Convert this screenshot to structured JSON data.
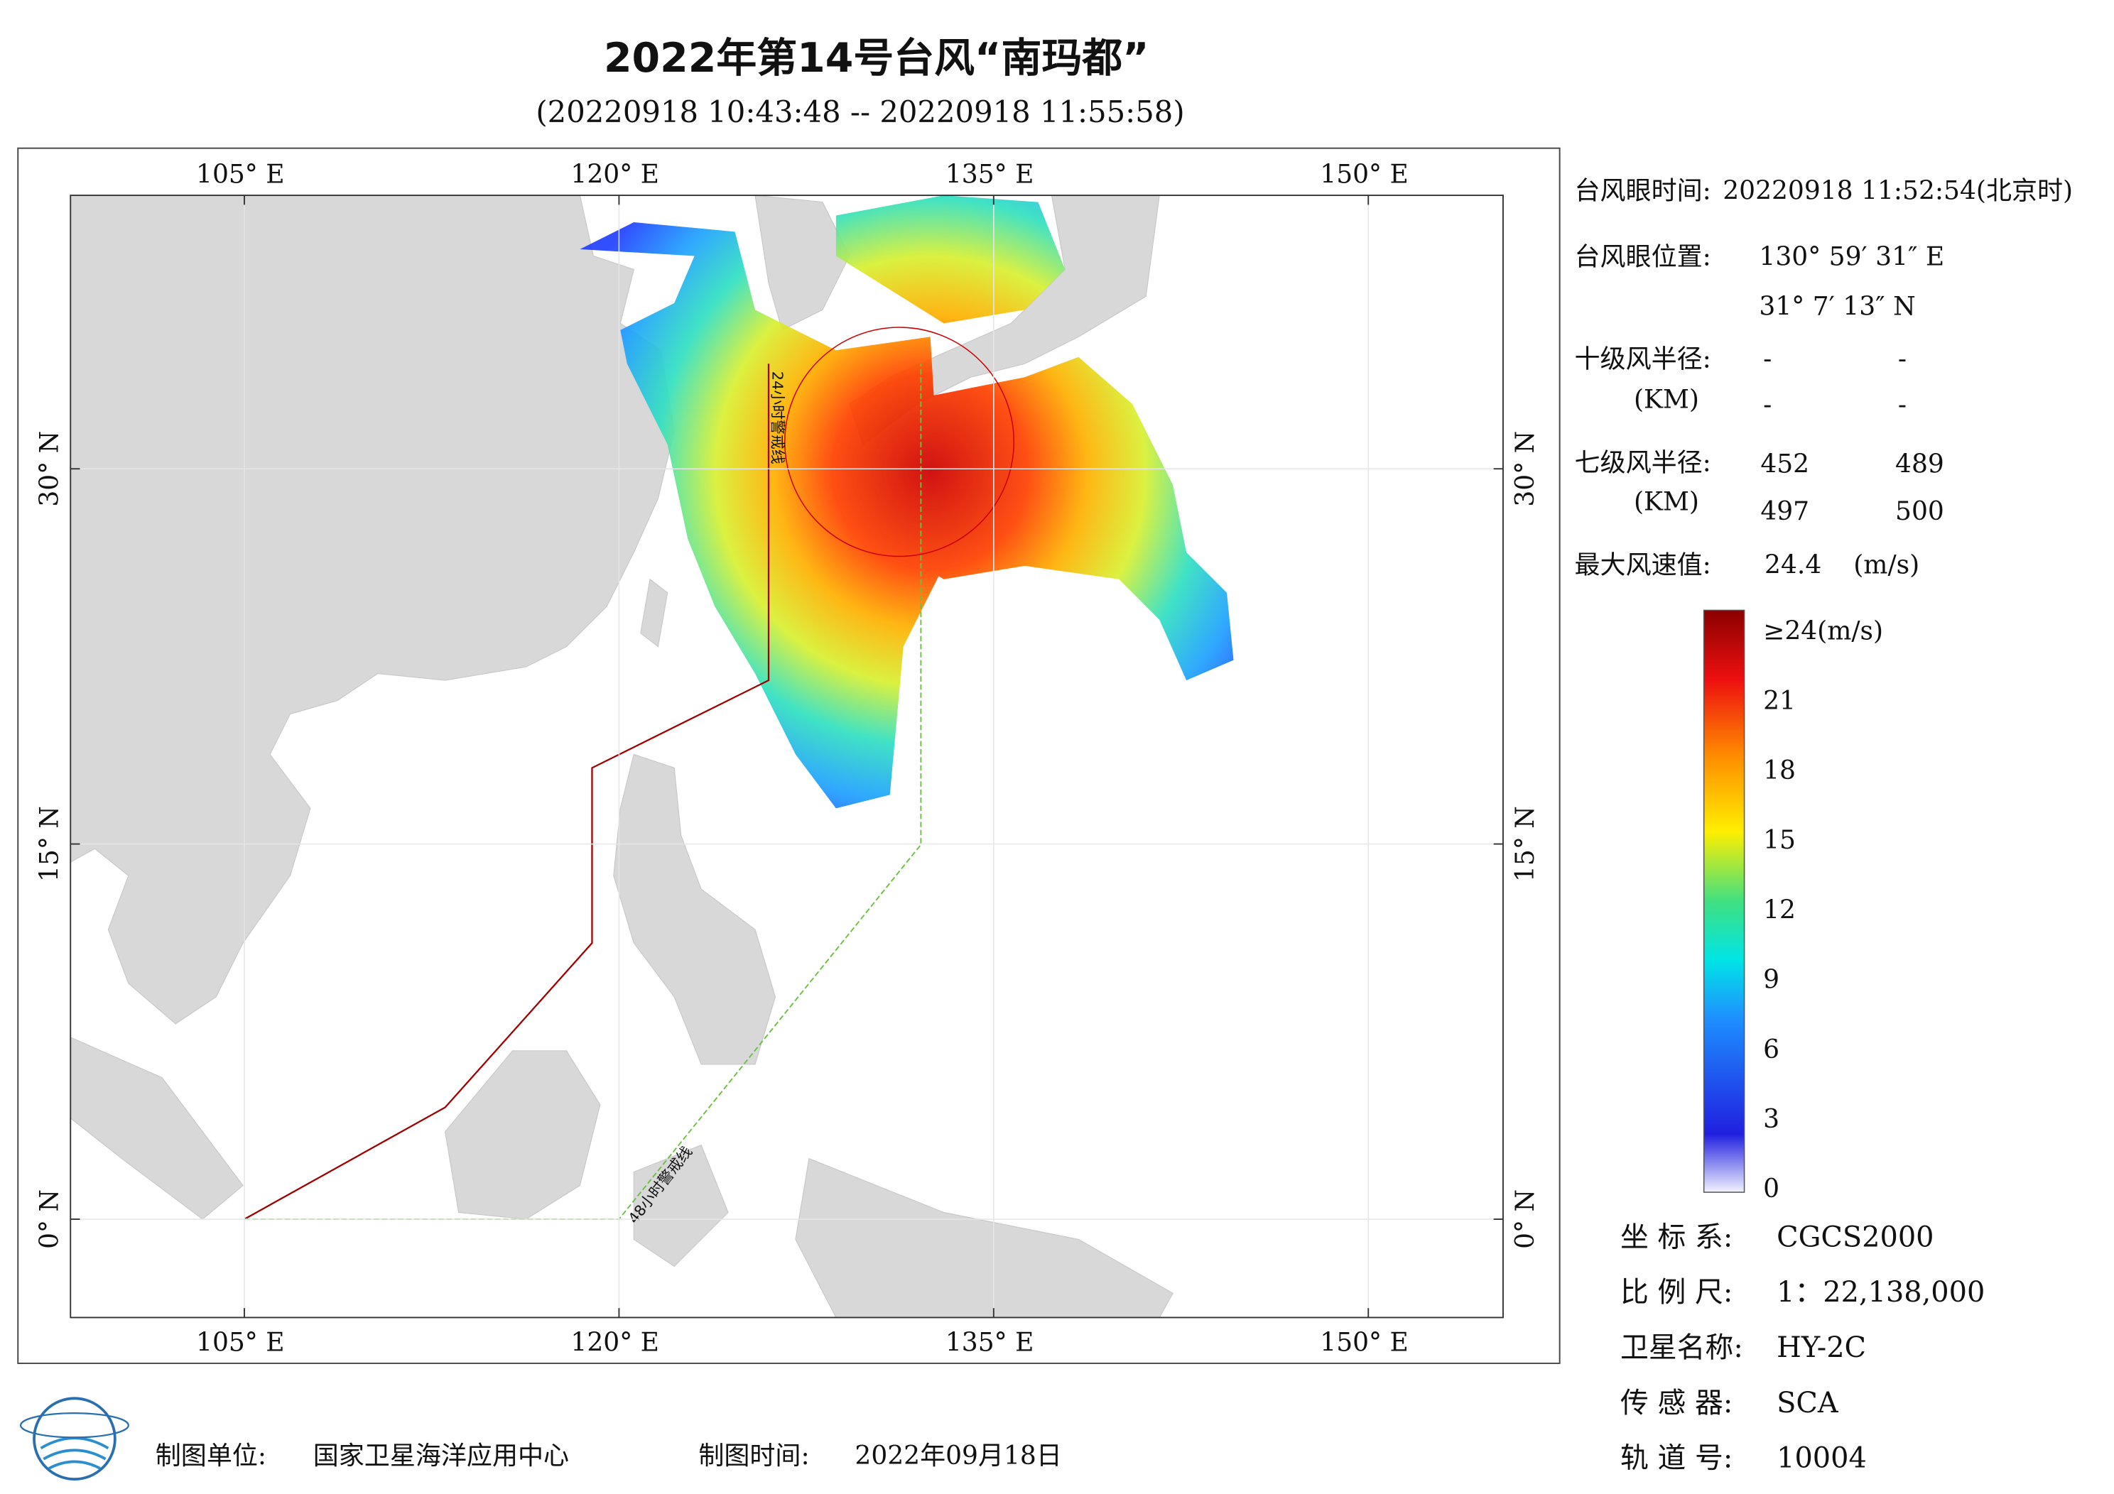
{
  "header": {
    "title": "2022年第14号台风“南玛都”",
    "subtitle": "(20220918 10:43:48 -- 20220918 11:55:58)"
  },
  "map": {
    "lon_ticks": [
      {
        "value": 105,
        "label": "105° E"
      },
      {
        "value": 120,
        "label": "120° E"
      },
      {
        "value": 135,
        "label": "135° E"
      },
      {
        "value": 150,
        "label": "150° E"
      }
    ],
    "lat_ticks": [
      {
        "value": 0,
        "label": "0° N"
      },
      {
        "value": 15,
        "label": "15° N"
      },
      {
        "value": 30,
        "label": "30° N"
      }
    ],
    "warning_lines": [
      "24小时警戒线",
      "48小时警戒线"
    ]
  },
  "info": {
    "eye_time_label": "台风眼时间:",
    "eye_time": "20220918 11:52:54(北京时)",
    "eye_pos_label": "台风眼位置:",
    "eye_lon": "130° 59′ 31″ E",
    "eye_lat": "31° 7′ 13″ N",
    "r10_label": "十级风半径:",
    "unit": "(KM)",
    "r10": [
      "-",
      "-",
      "-",
      "-"
    ],
    "r7_label": "七级风半径:",
    "r7": [
      452,
      489,
      497,
      500
    ],
    "max_wind_label": "最大风速值:",
    "max_wind": 24.4,
    "max_wind_unit": "(m/s)"
  },
  "colorbar": {
    "ticks": [
      0,
      3,
      6,
      9,
      12,
      15,
      18,
      21,
      {
        "value": 24,
        "label": "≥24(m/s)"
      }
    ]
  },
  "meta": [
    {
      "label": "坐 标 系:",
      "value": "CGCS2000"
    },
    {
      "label": "比 例 尺:",
      "value": "1：22,138,000"
    },
    {
      "label": "卫星名称:",
      "value": "HY-2C"
    },
    {
      "label": "传 感 器:",
      "value": "SCA"
    },
    {
      "label": "轨 道 号:",
      "value": "10004"
    }
  ],
  "footer": {
    "unit_label": "制图单位:",
    "unit": "国家卫星海洋应用中心",
    "time_label": "制图时间:",
    "time": "2022年09月18日"
  }
}
